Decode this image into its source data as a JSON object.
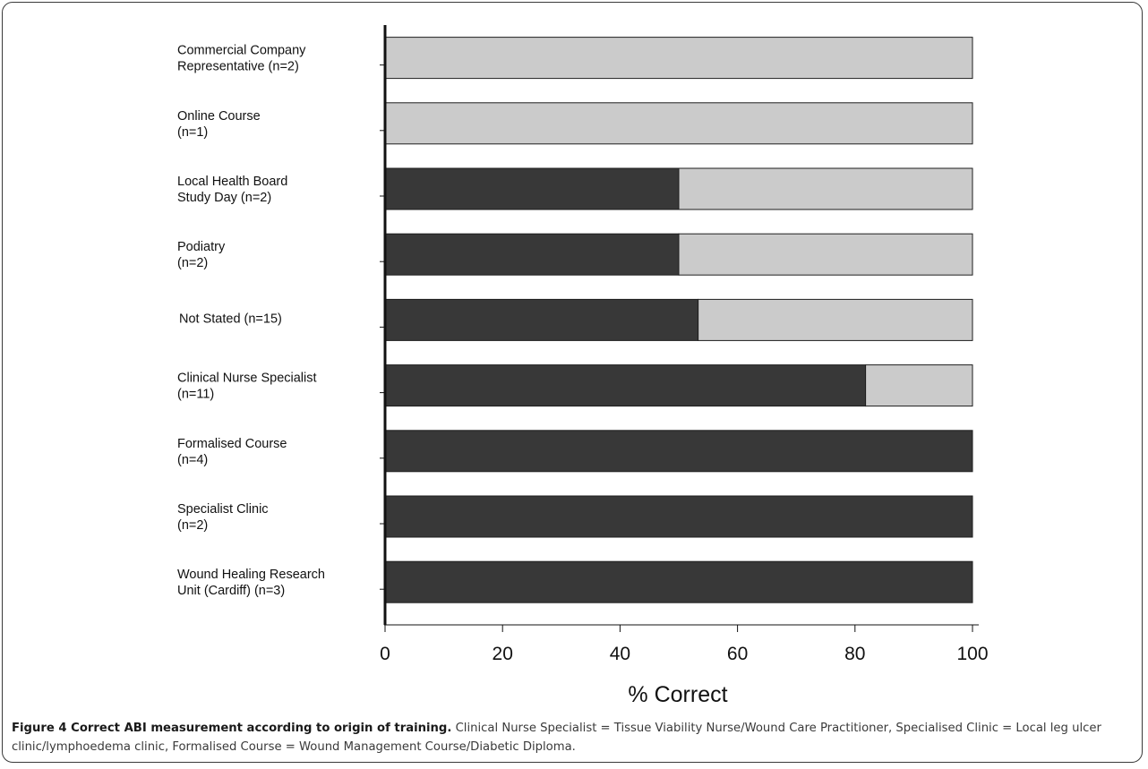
{
  "chart_data": {
    "type": "bar",
    "orientation": "horizontal",
    "stacked": true,
    "categories": [
      [
        "Commercial Company",
        "Representative (n=2)"
      ],
      [
        "Online Course",
        "(n=1)"
      ],
      [
        "Local Health Board",
        "Study Day (n=2)"
      ],
      [
        "Podiatry",
        "(n=2)"
      ],
      [
        "Not Stated (n=15)"
      ],
      [
        "Clinical Nurse Specialist",
        "(n=11)"
      ],
      [
        "Formalised Course",
        "(n=4)"
      ],
      [
        "Specialist Clinic",
        "(n=2)"
      ],
      [
        "Wound Healing Research",
        "Unit (Cardiff) (n=3)"
      ]
    ],
    "series": [
      {
        "values": [
          0,
          0,
          50,
          50,
          53.3,
          81.8,
          100,
          100,
          100
        ],
        "color": "#383838"
      },
      {
        "values": [
          100,
          100,
          50,
          50,
          46.7,
          18.2,
          0,
          0,
          0
        ],
        "color": "#cbcbcb"
      }
    ],
    "xlabel": "% Correct",
    "xlim": [
      0,
      100
    ],
    "xticks": [
      0,
      20,
      40,
      60,
      80,
      100
    ],
    "grid": false,
    "legend": "none"
  },
  "caption": {
    "title": "Figure 4 Correct ABI measurement according to origin of training.",
    "text": " Clinical Nurse Specialist = Tissue Viability Nurse/Wound Care Practitioner, Specialised Clinic = Local leg ulcer clinic/lymphoedema clinic, Formalised Course = Wound Management Course/Diabetic Diploma."
  }
}
